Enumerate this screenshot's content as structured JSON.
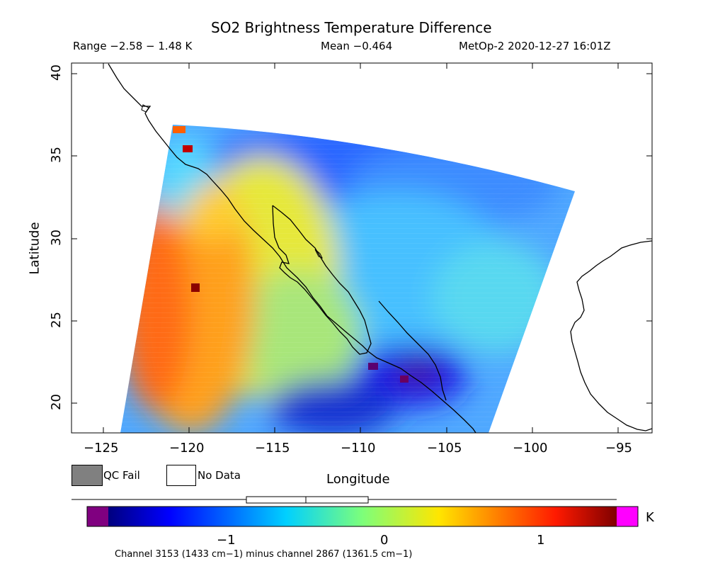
{
  "header": {
    "title": "SO2 Brightness Temperature Difference",
    "range": "Range −2.58 − 1.48 K",
    "mean": "Mean −0.464",
    "satellite_time": "MetOp-2 2020-12-27 16:01Z"
  },
  "map": {
    "xlabel": "Longitude",
    "ylabel": "Latitude",
    "xticks": [
      "−125",
      "−120",
      "−115",
      "−110",
      "−105",
      "−100",
      "−95"
    ],
    "yticks": [
      "40",
      "35",
      "30",
      "25",
      "20"
    ],
    "background_color": "#ffffff",
    "coastline_color": "#000000"
  },
  "legend": {
    "qc_fail_label": "QC Fail",
    "no_data_label": "No Data",
    "qc_fail_color": "#808080",
    "no_data_color": "#ffffff"
  },
  "colorbar": {
    "unit": "K",
    "ticks": [
      "−1",
      "0",
      "1"
    ],
    "under_color": "#800080",
    "over_color": "#ff00ff",
    "note": "Channel 3153 (1433 cm−1) minus channel 2867 (1361.5 cm−1)"
  },
  "chart_data": {
    "type": "heatmap",
    "title": "SO2 Brightness Temperature Difference",
    "xlabel": "Longitude",
    "ylabel": "Latitude",
    "xlim": [
      -126.5,
      -92.7
    ],
    "ylim": [
      18.3,
      40.7
    ],
    "xticks": [
      -125,
      -120,
      -115,
      -110,
      -105,
      -100,
      -95
    ],
    "yticks": [
      20,
      25,
      30,
      35,
      40
    ],
    "value_range": [
      -2.58,
      1.48
    ],
    "mean": -0.464,
    "colorbar_limits": [
      -1.75,
      1.5
    ],
    "colorbar_ticks": [
      -1,
      0,
      1
    ],
    "unit": "K",
    "regions": [
      {
        "lon": -122,
        "lat": 26,
        "value": 0.9
      },
      {
        "lon": -120,
        "lat": 28,
        "value": 0.8
      },
      {
        "lon": -116,
        "lat": 26,
        "value": 0.3
      },
      {
        "lon": -112,
        "lat": 28,
        "value": -0.4
      },
      {
        "lon": -112,
        "lat": 33,
        "value": -0.9
      },
      {
        "lon": -105,
        "lat": 33,
        "value": -0.8
      },
      {
        "lon": -103,
        "lat": 27,
        "value": -0.4
      },
      {
        "lon": -107,
        "lat": 21.5,
        "value": -1.6
      },
      {
        "lon": -112,
        "lat": 19.5,
        "value": -1.3
      },
      {
        "lon": -120,
        "lat": 35.5,
        "value": 0.8
      }
    ]
  }
}
